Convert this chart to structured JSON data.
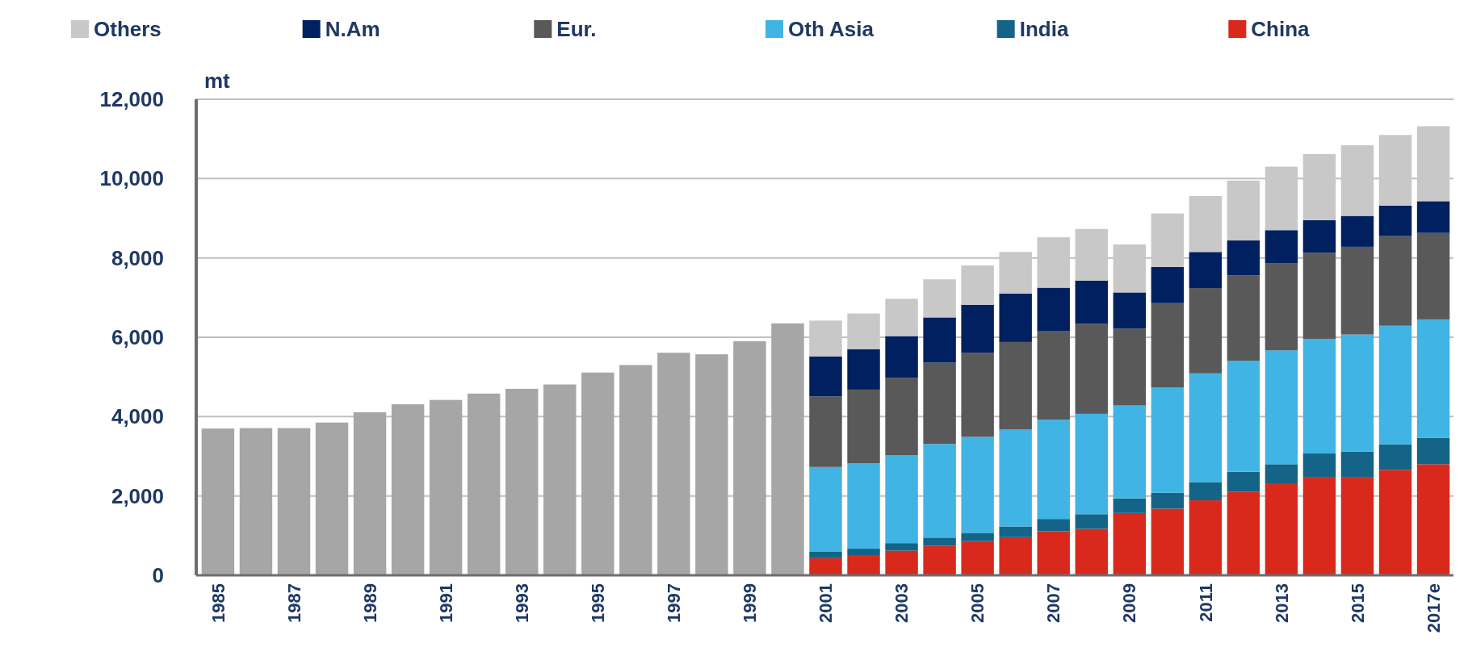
{
  "chart_data": {
    "type": "bar",
    "stacked": true,
    "ylabel": "mt",
    "legend": "top",
    "grid": "y",
    "categories": [
      "1985",
      null,
      "1987",
      null,
      "1989",
      null,
      "1991",
      null,
      "1993",
      null,
      "1995",
      null,
      "1997",
      null,
      "1999",
      null,
      "2001",
      null,
      "2003",
      null,
      "2005",
      null,
      "2007",
      null,
      "2009",
      null,
      "2011",
      null,
      "2013",
      null,
      "2015",
      null,
      "2017e"
    ],
    "ylim": [
      0,
      12000
    ],
    "yticks": [
      0,
      {
        "value": 2000,
        "label": "2,000"
      },
      {
        "value": 4000,
        "label": "4,000"
      },
      {
        "value": 6000,
        "label": "6,000"
      },
      {
        "value": 8000,
        "label": "8,000"
      },
      {
        "value": 10000,
        "label": "10,000"
      },
      {
        "value": 12000,
        "label": "12,000"
      }
    ],
    "series": [
      {
        "color": "#a6a6a6",
        "values": [
          3700,
          3710,
          3710,
          3850,
          4110,
          4310,
          4420,
          4580,
          4700,
          4810,
          5110,
          5300,
          5610,
          5570,
          5900,
          6350,
          null,
          null,
          null,
          null,
          null,
          null,
          null,
          null,
          null,
          null,
          null,
          null,
          null,
          null,
          null,
          null,
          null
        ]
      },
      {
        "name": "China",
        "color": "#d9291c",
        "values": [
          null,
          null,
          null,
          null,
          null,
          null,
          null,
          null,
          null,
          null,
          null,
          null,
          null,
          null,
          null,
          null,
          430,
          490,
          620,
          740,
          860,
          960,
          1110,
          1170,
          1570,
          1680,
          1890,
          2110,
          2300,
          2480,
          2480,
          2660,
          2800
        ]
      },
      {
        "name": "India",
        "color": "#136486",
        "values": [
          null,
          null,
          null,
          null,
          null,
          null,
          null,
          null,
          null,
          null,
          null,
          null,
          null,
          null,
          null,
          null,
          160,
          180,
          190,
          210,
          210,
          270,
          310,
          370,
          370,
          400,
          460,
          500,
          500,
          590,
          640,
          640,
          660
        ]
      },
      {
        "name": "Oth Asia",
        "color": "#41b4e6",
        "values": [
          null,
          null,
          null,
          null,
          null,
          null,
          null,
          null,
          null,
          null,
          null,
          null,
          null,
          null,
          null,
          null,
          2140,
          2150,
          2220,
          2360,
          2420,
          2450,
          2500,
          2530,
          2340,
          2650,
          2740,
          2800,
          2870,
          2890,
          2950,
          2990,
          2990
        ]
      },
      {
        "name": "Eur.",
        "color": "#595959",
        "values": [
          null,
          null,
          null,
          null,
          null,
          null,
          null,
          null,
          null,
          null,
          null,
          null,
          null,
          null,
          null,
          null,
          1780,
          1860,
          1950,
          2050,
          2120,
          2200,
          2230,
          2270,
          1940,
          2130,
          2150,
          2150,
          2200,
          2170,
          2210,
          2260,
          2180
        ]
      },
      {
        "name": "N.Am",
        "color": "#002060",
        "values": [
          null,
          null,
          null,
          null,
          null,
          null,
          null,
          null,
          null,
          null,
          null,
          null,
          null,
          null,
          null,
          null,
          1010,
          1020,
          1050,
          1140,
          1210,
          1220,
          1100,
          1090,
          910,
          910,
          910,
          880,
          830,
          820,
          780,
          770,
          800
        ]
      },
      {
        "name": "Others",
        "color": "#c8c8c8",
        "values": [
          null,
          null,
          null,
          null,
          null,
          null,
          null,
          null,
          null,
          null,
          null,
          null,
          null,
          null,
          null,
          null,
          900,
          900,
          940,
          960,
          990,
          1050,
          1270,
          1300,
          1210,
          1350,
          1410,
          1510,
          1600,
          1670,
          1780,
          1780,
          1890
        ]
      }
    ]
  }
}
